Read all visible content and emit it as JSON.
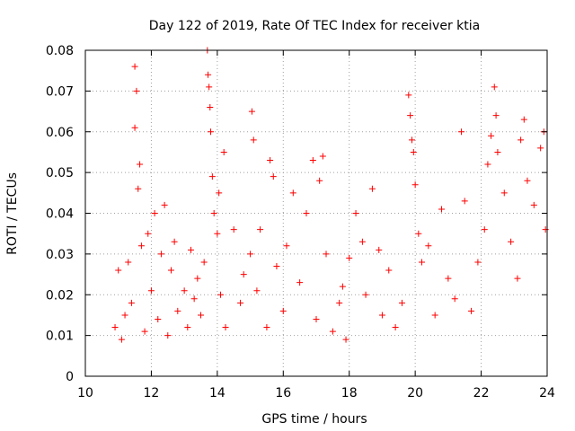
{
  "chart_data": {
    "type": "scatter",
    "title": "Day 122 of 2019, Rate Of TEC Index for receiver ktia",
    "xlabel": "GPS time / hours",
    "ylabel": "ROTI / TECUs",
    "xlim": [
      10,
      24
    ],
    "ylim": [
      0,
      0.08
    ],
    "x_ticks": [
      10,
      12,
      14,
      16,
      18,
      20,
      22,
      24
    ],
    "x_tick_labels": [
      "10",
      "12",
      "14",
      "16",
      "18",
      "20",
      "22",
      "24"
    ],
    "y_ticks": [
      0,
      0.01,
      0.02,
      0.03,
      0.04,
      0.05,
      0.06,
      0.07,
      0.08
    ],
    "y_tick_labels": [
      "0",
      "0.01",
      "0.02",
      "0.03",
      "0.04",
      "0.05",
      "0.06",
      "0.07",
      "0.08"
    ],
    "grid": true,
    "marker": "+",
    "color": "#ff0000",
    "series": [
      {
        "name": "ROTI",
        "points": [
          [
            10.9,
            0.012
          ],
          [
            11.0,
            0.026
          ],
          [
            11.1,
            0.009
          ],
          [
            11.2,
            0.015
          ],
          [
            11.3,
            0.028
          ],
          [
            11.4,
            0.018
          ],
          [
            11.5,
            0.076
          ],
          [
            11.5,
            0.061
          ],
          [
            11.55,
            0.07
          ],
          [
            11.6,
            0.046
          ],
          [
            11.65,
            0.052
          ],
          [
            11.7,
            0.032
          ],
          [
            11.8,
            0.011
          ],
          [
            11.9,
            0.035
          ],
          [
            12.0,
            0.021
          ],
          [
            12.1,
            0.04
          ],
          [
            12.2,
            0.014
          ],
          [
            12.3,
            0.03
          ],
          [
            12.4,
            0.042
          ],
          [
            12.5,
            0.01
          ],
          [
            12.6,
            0.026
          ],
          [
            12.7,
            0.033
          ],
          [
            12.8,
            0.016
          ],
          [
            13.0,
            0.021
          ],
          [
            13.1,
            0.012
          ],
          [
            13.2,
            0.031
          ],
          [
            13.3,
            0.019
          ],
          [
            13.4,
            0.024
          ],
          [
            13.5,
            0.015
          ],
          [
            13.6,
            0.028
          ],
          [
            13.7,
            0.08
          ],
          [
            13.72,
            0.074
          ],
          [
            13.75,
            0.071
          ],
          [
            13.78,
            0.066
          ],
          [
            13.8,
            0.06
          ],
          [
            13.85,
            0.049
          ],
          [
            13.9,
            0.04
          ],
          [
            14.0,
            0.035
          ],
          [
            14.05,
            0.045
          ],
          [
            14.1,
            0.02
          ],
          [
            14.2,
            0.055
          ],
          [
            14.25,
            0.012
          ],
          [
            14.5,
            0.036
          ],
          [
            14.7,
            0.018
          ],
          [
            14.8,
            0.025
          ],
          [
            15.0,
            0.03
          ],
          [
            15.05,
            0.065
          ],
          [
            15.1,
            0.058
          ],
          [
            15.2,
            0.021
          ],
          [
            15.3,
            0.036
          ],
          [
            15.5,
            0.012
          ],
          [
            15.6,
            0.053
          ],
          [
            15.7,
            0.049
          ],
          [
            15.8,
            0.027
          ],
          [
            16.0,
            0.016
          ],
          [
            16.1,
            0.032
          ],
          [
            16.3,
            0.045
          ],
          [
            16.5,
            0.023
          ],
          [
            16.7,
            0.04
          ],
          [
            16.9,
            0.053
          ],
          [
            17.0,
            0.014
          ],
          [
            17.1,
            0.048
          ],
          [
            17.2,
            0.054
          ],
          [
            17.3,
            0.03
          ],
          [
            17.5,
            0.011
          ],
          [
            17.7,
            0.018
          ],
          [
            17.8,
            0.022
          ],
          [
            17.9,
            0.009
          ],
          [
            18.0,
            0.029
          ],
          [
            18.2,
            0.04
          ],
          [
            18.4,
            0.033
          ],
          [
            18.5,
            0.02
          ],
          [
            18.7,
            0.046
          ],
          [
            18.9,
            0.031
          ],
          [
            19.0,
            0.015
          ],
          [
            19.2,
            0.026
          ],
          [
            19.4,
            0.012
          ],
          [
            19.6,
            0.018
          ],
          [
            19.8,
            0.069
          ],
          [
            19.85,
            0.064
          ],
          [
            19.9,
            0.058
          ],
          [
            19.95,
            0.055
          ],
          [
            20.0,
            0.047
          ],
          [
            20.1,
            0.035
          ],
          [
            20.2,
            0.028
          ],
          [
            20.4,
            0.032
          ],
          [
            20.6,
            0.015
          ],
          [
            20.8,
            0.041
          ],
          [
            21.0,
            0.024
          ],
          [
            21.2,
            0.019
          ],
          [
            21.4,
            0.06
          ],
          [
            21.5,
            0.043
          ],
          [
            21.7,
            0.016
          ],
          [
            21.9,
            0.028
          ],
          [
            22.1,
            0.036
          ],
          [
            22.2,
            0.052
          ],
          [
            22.3,
            0.059
          ],
          [
            22.4,
            0.071
          ],
          [
            22.45,
            0.064
          ],
          [
            22.5,
            0.055
          ],
          [
            22.7,
            0.045
          ],
          [
            22.9,
            0.033
          ],
          [
            23.1,
            0.024
          ],
          [
            23.2,
            0.058
          ],
          [
            23.3,
            0.063
          ],
          [
            23.4,
            0.048
          ],
          [
            23.6,
            0.042
          ],
          [
            23.8,
            0.056
          ],
          [
            23.9,
            0.06
          ],
          [
            23.95,
            0.036
          ]
        ]
      }
    ]
  }
}
